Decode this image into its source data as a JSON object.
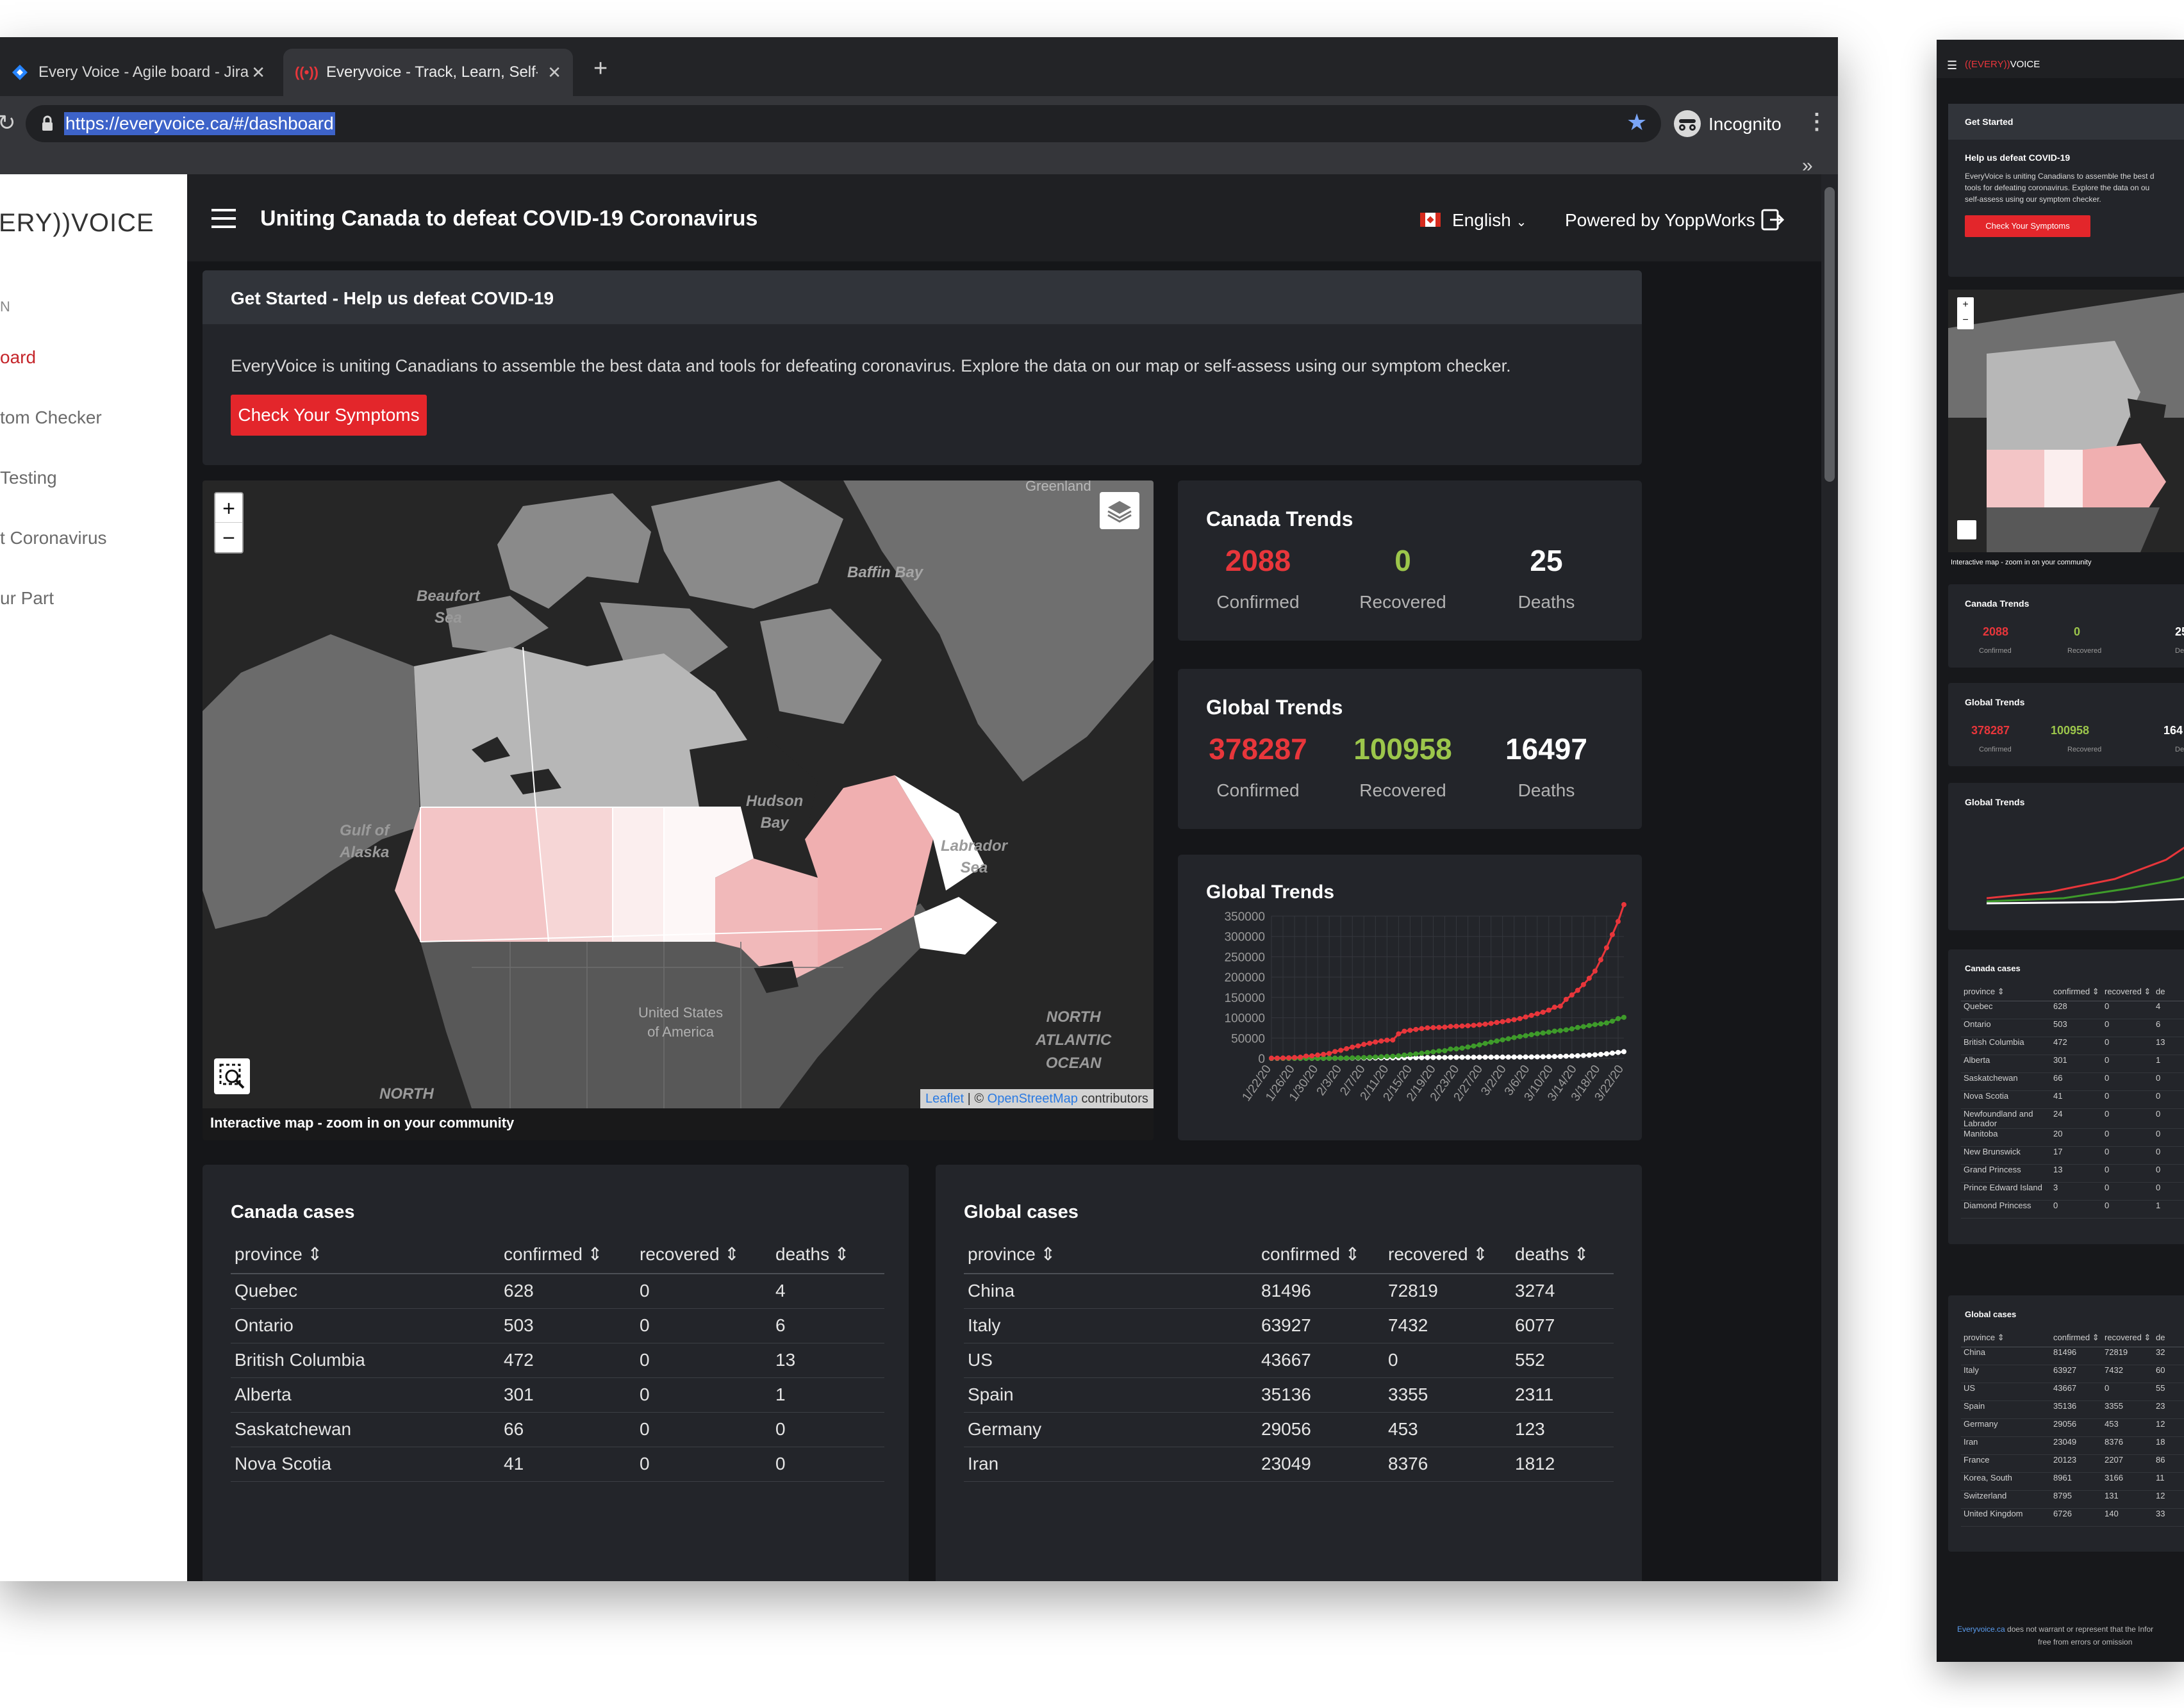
{
  "browser": {
    "tabs": [
      {
        "title": "Every Voice - Agile board - Jira",
        "icon": "jira-diamond-icon"
      },
      {
        "title": "Everyvoice - Track, Learn, Self-a",
        "icon": "everyvoice-favicon-icon",
        "active": true
      }
    ],
    "new_tab": "+",
    "url": "https://everyvoice.ca/#/dashboard",
    "profile": "Incognito",
    "bookmarks_overflow": "»"
  },
  "sidebar": {
    "logo": "ERY))VOICE",
    "items": [
      {
        "label": "N"
      },
      {
        "label": "oard",
        "active": true
      },
      {
        "label": "tom Checker"
      },
      {
        "label": "Testing"
      },
      {
        "label": "t Coronavirus"
      },
      {
        "label": "ur Part"
      }
    ]
  },
  "header": {
    "title": "Uniting Canada to defeat COVID-19 Coronavirus",
    "language": "English",
    "powered_by": "Powered by YoppWorks"
  },
  "get_started": {
    "title": "Get Started - Help us defeat COVID-19",
    "text": "EveryVoice is uniting Canadians to assemble the best data and tools for defeating coronavirus. Explore the data on our map or self-assess using our symptom checker.",
    "button": "Check Your Symptoms"
  },
  "map": {
    "zoom_in": "+",
    "zoom_out": "−",
    "labels": {
      "greenland": "Greenland",
      "baffin": "Baffin Bay",
      "beaufort_1": "Beaufort",
      "beaufort_2": "Sea",
      "hudson_1": "Hudson",
      "hudson_2": "Bay",
      "gulf_1": "Gulf of",
      "gulf_2": "Alaska",
      "labrador_1": "Labrador",
      "labrador_2": "Sea",
      "us_1": "United States",
      "us_2": "of America",
      "atlantic_1": "NORTH",
      "atlantic_2": "ATLANTIC",
      "atlantic_3": "OCEAN",
      "pacific": "NORTH"
    },
    "attribution_leaflet": "Leaflet",
    "attribution_sep": " | © ",
    "attribution_osm": "OpenStreetMap",
    "attribution_tail": " contributors",
    "caption": "Interactive map - zoom in on your community"
  },
  "canada_trends": {
    "title": "Canada Trends",
    "confirmed": "2088",
    "recovered": "0",
    "deaths": "25",
    "confirmed_label": "Confirmed",
    "recovered_label": "Recovered",
    "deaths_label": "Deaths"
  },
  "global_trends": {
    "title": "Global Trends",
    "confirmed": "378287",
    "recovered": "100958",
    "deaths": "16497",
    "confirmed_label": "Confirmed",
    "recovered_label": "Recovered",
    "deaths_label": "Deaths"
  },
  "chart_data": {
    "type": "line",
    "title": "Global Trends",
    "y_ticks": [
      "350000",
      "300000",
      "250000",
      "200000",
      "150000",
      "100000",
      "50000",
      "0"
    ],
    "ylim": [
      0,
      350000
    ],
    "x_ticks": [
      "1/22/20",
      "1/26/20",
      "1/30/20",
      "2/3/20",
      "2/7/20",
      "2/11/20",
      "2/15/20",
      "2/19/20",
      "2/23/20",
      "2/27/20",
      "3/2/20",
      "3/6/20",
      "3/10/20",
      "3/14/20",
      "3/18/20",
      "3/22/20"
    ],
    "grid": true,
    "colors": {
      "confirmed": "#e8363b",
      "recovered": "#3e9b2a",
      "deaths": "#ffffff"
    },
    "series": [
      {
        "key": "confirmed",
        "values": [
          555,
          654,
          941,
          1434,
          2118,
          2927,
          5578,
          6166,
          8234,
          9927,
          12038,
          16787,
          19881,
          23892,
          27635,
          30794,
          34391,
          37120,
          40150,
          42762,
          44802,
          45221,
          60368,
          66885,
          69030,
          71224,
          73258,
          75136,
          75639,
          76197,
          76819,
          78572,
          78958,
          79561,
          80406,
          81388,
          82746,
          84112,
          86011,
          88369,
          90306,
          92840,
          95120,
          97886,
          101801,
          105847,
          109821,
          113590,
          118620,
          125875,
          128352,
          145205,
          156101,
          167454,
          181574,
          197102,
          214821,
          242570,
          272208,
          304507,
          336953,
          378287
        ]
      },
      {
        "key": "recovered",
        "values": [
          28,
          30,
          36,
          39,
          52,
          61,
          107,
          126,
          143,
          222,
          284,
          472,
          623,
          852,
          1124,
          1487,
          2011,
          2616,
          3244,
          3946,
          4683,
          5150,
          6295,
          8058,
          9395,
          10865,
          12583,
          14352,
          16121,
          18177,
          18890,
          22886,
          23394,
          25227,
          27905,
          30384,
          33277,
          36711,
          39782,
          42716,
          45602,
          48228,
          51170,
          53796,
          55865,
          58358,
          60694,
          62494,
          64404,
          67003,
          68324,
          70251,
          72624,
          76034,
          78088,
          80840,
          83207,
          84854,
          87256,
          91499,
          97704,
          100958
        ]
      },
      {
        "key": "deaths",
        "values": [
          17,
          18,
          26,
          42,
          56,
          82,
          131,
          133,
          171,
          213,
          259,
          362,
          426,
          492,
          564,
          634,
          719,
          806,
          906,
          1013,
          1113,
          1118,
          1371,
          1523,
          1666,
          1770,
          1868,
          2007,
          2122,
          2247,
          2251,
          2458,
          2469,
          2629,
          2708,
          2770,
          2814,
          2872,
          2941,
          2996,
          3085,
          3160,
          3254,
          3348,
          3460,
          3558,
          3802,
          3988,
          4262,
          4615,
          4720,
          5404,
          5819,
          6440,
          7126,
          7905,
          8733,
          9867,
          11299,
          12973,
          14623,
          16497
        ]
      }
    ]
  },
  "canada_cases": {
    "title": "Canada cases",
    "headers": [
      "province",
      "confirmed",
      "recovered",
      "deaths"
    ],
    "rows": [
      [
        "Quebec",
        "628",
        "0",
        "4"
      ],
      [
        "Ontario",
        "503",
        "0",
        "6"
      ],
      [
        "British Columbia",
        "472",
        "0",
        "13"
      ],
      [
        "Alberta",
        "301",
        "0",
        "1"
      ],
      [
        "Saskatchewan",
        "66",
        "0",
        "0"
      ],
      [
        "Nova Scotia",
        "41",
        "0",
        "0"
      ]
    ]
  },
  "global_cases": {
    "title": "Global cases",
    "headers": [
      "province",
      "confirmed",
      "recovered",
      "deaths"
    ],
    "rows": [
      [
        "China",
        "81496",
        "72819",
        "3274"
      ],
      [
        "Italy",
        "63927",
        "7432",
        "6077"
      ],
      [
        "US",
        "43667",
        "0",
        "552"
      ],
      [
        "Spain",
        "35136",
        "3355",
        "2311"
      ],
      [
        "Germany",
        "29056",
        "453",
        "123"
      ],
      [
        "Iran",
        "23049",
        "8376",
        "1812"
      ]
    ]
  },
  "sort_icon": "⇕",
  "mini": {
    "logo_prefix": "((EVERY))",
    "logo_suffix": "VOICE",
    "get_started": "Get Started",
    "help_title": "Help us defeat COVID-19",
    "help_text_1": "EveryVoice is uniting Canadians to assemble the best d",
    "help_text_2": "tools for defeating coronavirus. Explore the data on ou",
    "help_text_3": "self-assess using our symptom checker.",
    "button": "Check Your Symptoms",
    "map_caption": "Interactive map - zoom in on your community",
    "canada_title": "Canada Trends",
    "canada_values": [
      "2088",
      "0",
      "25"
    ],
    "global_title": "Global Trends",
    "global_values": [
      "378287",
      "100958",
      "164"
    ],
    "value_labels": [
      "Confirmed",
      "Recovered",
      "Deat"
    ],
    "chart_title": "Global Trends",
    "canada_cases_title": "Canada cases",
    "canada_headers": [
      "province ⇕",
      "confirmed ⇕",
      "recovered ⇕",
      "de"
    ],
    "canada_rows": [
      [
        "Quebec",
        "628",
        "0",
        "4"
      ],
      [
        "Ontario",
        "503",
        "0",
        "6"
      ],
      [
        "British Columbia",
        "472",
        "0",
        "13"
      ],
      [
        "Alberta",
        "301",
        "0",
        "1"
      ],
      [
        "Saskatchewan",
        "66",
        "0",
        "0"
      ],
      [
        "Nova Scotia",
        "41",
        "0",
        "0"
      ],
      [
        "Newfoundland and Labrador",
        "24",
        "0",
        "0"
      ],
      [
        "Manitoba",
        "20",
        "0",
        "0"
      ],
      [
        "New Brunswick",
        "17",
        "0",
        "0"
      ],
      [
        "Grand Princess",
        "13",
        "0",
        "0"
      ],
      [
        "Prince Edward Island",
        "3",
        "0",
        "0"
      ],
      [
        "Diamond Princess",
        "0",
        "0",
        "1"
      ]
    ],
    "global_cases_title": "Global cases",
    "global_headers": [
      "province ⇕",
      "confirmed ⇕",
      "recovered ⇕",
      "de"
    ],
    "global_rows": [
      [
        "China",
        "81496",
        "72819",
        "32"
      ],
      [
        "Italy",
        "63927",
        "7432",
        "60"
      ],
      [
        "US",
        "43667",
        "0",
        "55"
      ],
      [
        "Spain",
        "35136",
        "3355",
        "23"
      ],
      [
        "Germany",
        "29056",
        "453",
        "12"
      ],
      [
        "Iran",
        "23049",
        "8376",
        "18"
      ],
      [
        "France",
        "20123",
        "2207",
        "86"
      ],
      [
        "Korea, South",
        "8961",
        "3166",
        "11"
      ],
      [
        "Switzerland",
        "8795",
        "131",
        "12"
      ],
      [
        "United Kingdom",
        "6726",
        "140",
        "33"
      ]
    ],
    "footer_link": "Everyvoice.ca",
    "footer_text": " does not warrant or represent that the Infor",
    "footer_text_2": "free from errors or omission"
  }
}
